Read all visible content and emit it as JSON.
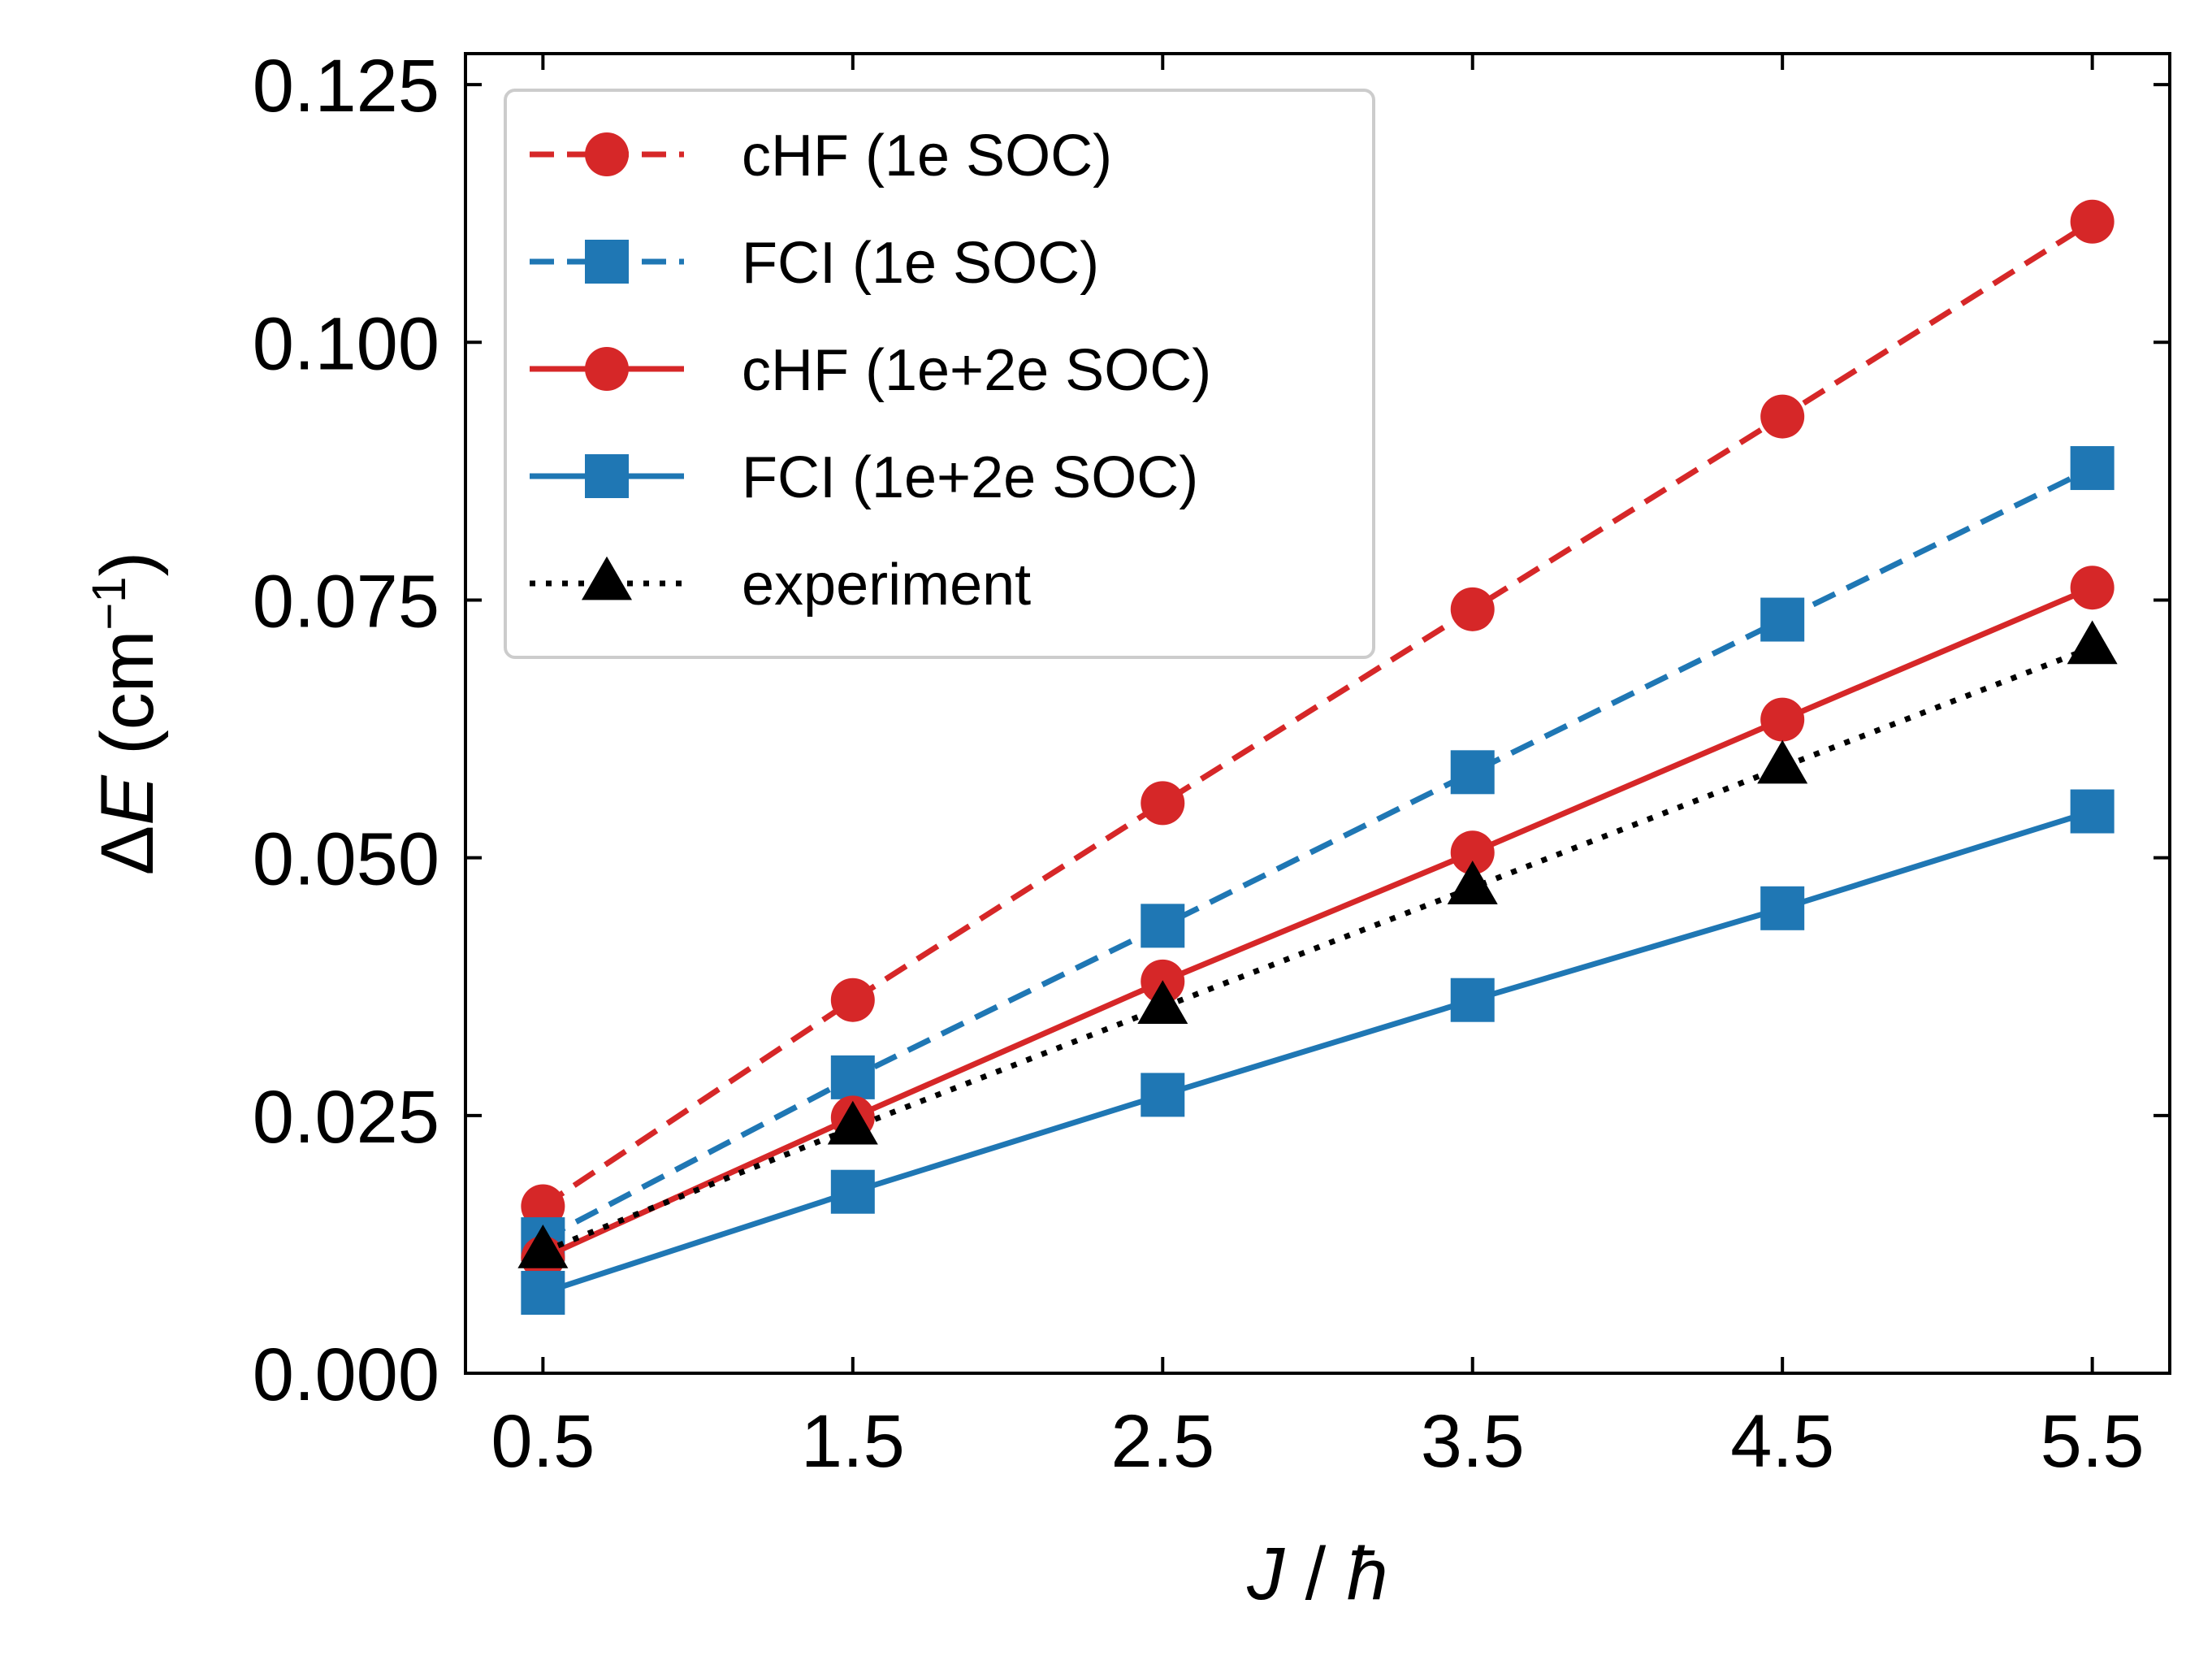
{
  "chart_data": {
    "type": "line",
    "title": "",
    "xlabel": {
      "symbol": "J",
      "sep": " / ",
      "unit": "ħ"
    },
    "ylabel": {
      "prefix": "Δ",
      "symbol": "E",
      "unit_open": " (cm",
      "unit_exp": "−1",
      "unit_close": ")"
    },
    "x": [
      0.5,
      1.5,
      2.5,
      3.5,
      4.5,
      5.5
    ],
    "xlim": [
      0.25,
      5.75
    ],
    "ylim": [
      0.0,
      0.128
    ],
    "xticks": [
      "0.5",
      "1.5",
      "2.5",
      "3.5",
      "4.5",
      "5.5"
    ],
    "yticks": [
      "0.000",
      "0.025",
      "0.050",
      "0.075",
      "0.100",
      "0.125"
    ],
    "ytick_values": [
      0.0,
      0.025,
      0.05,
      0.075,
      0.1,
      0.125
    ],
    "grid": false,
    "legend_position": "top-left",
    "series": [
      {
        "name": "cHF (1e SOC)",
        "color": "#d62728",
        "linestyle": "dashed",
        "marker": "circle",
        "values": [
          0.0162,
          0.0362,
          0.0553,
          0.0741,
          0.0928,
          0.1117
        ]
      },
      {
        "name": "FCI (1e SOC)",
        "color": "#1f77b4",
        "linestyle": "dashed",
        "marker": "square",
        "values": [
          0.013,
          0.0287,
          0.0434,
          0.0583,
          0.0731,
          0.0878
        ]
      },
      {
        "name": "cHF (1e+2e SOC)",
        "color": "#d62728",
        "linestyle": "solid",
        "marker": "circle",
        "values": [
          0.0112,
          0.0248,
          0.038,
          0.0505,
          0.0634,
          0.0762
        ]
      },
      {
        "name": "FCI (1e+2e SOC)",
        "color": "#1f77b4",
        "linestyle": "solid",
        "marker": "square",
        "values": [
          0.0078,
          0.0176,
          0.027,
          0.0362,
          0.0451,
          0.0545
        ]
      },
      {
        "name": "experiment",
        "color": "#000000",
        "linestyle": "dotted",
        "marker": "triangle",
        "values": [
          0.0118,
          0.0238,
          0.0355,
          0.0471,
          0.0588,
          0.0704
        ]
      }
    ]
  }
}
